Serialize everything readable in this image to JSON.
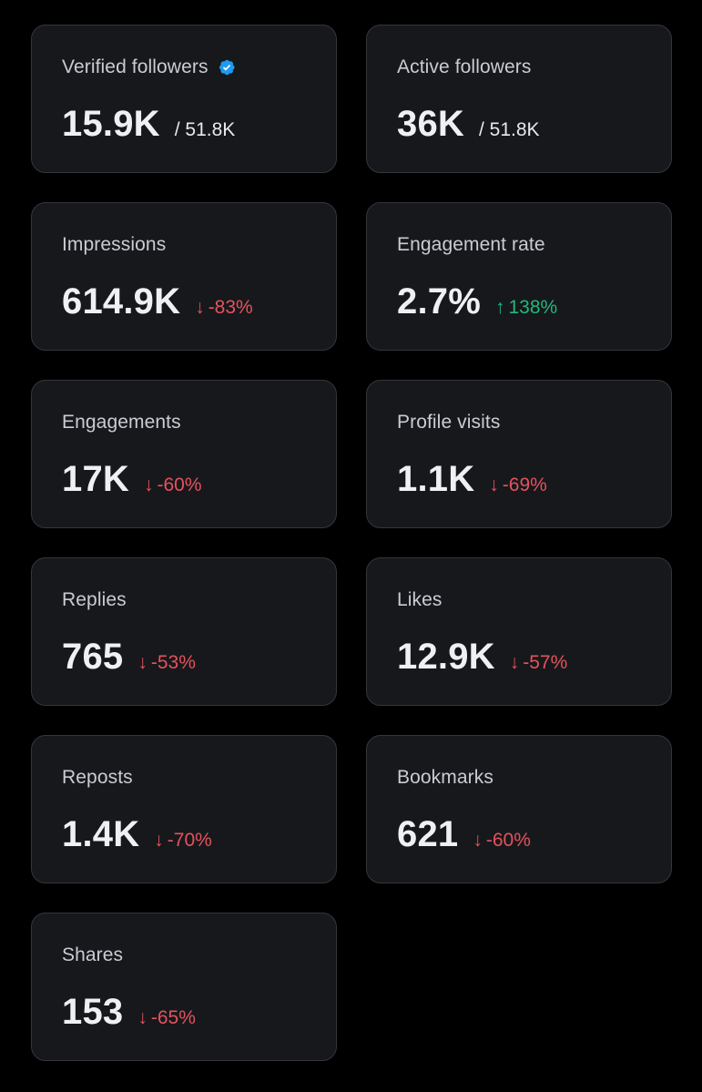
{
  "colors": {
    "background": "#000000",
    "card": "#17181c",
    "card_border": "#34363b",
    "positive": "#22b87a",
    "negative": "#e3535c",
    "verified": "#1d9bf0"
  },
  "cards": [
    {
      "label": "Verified followers",
      "value": "15.9K",
      "total": "/ 51.8K",
      "icon": "verified-badge-icon"
    },
    {
      "label": "Active followers",
      "value": "36K",
      "total": "/ 51.8K"
    },
    {
      "label": "Impressions",
      "value": "614.9K",
      "change": "-83%",
      "direction": "down",
      "arrow": "↓"
    },
    {
      "label": "Engagement rate",
      "value": "2.7%",
      "change": "138%",
      "direction": "up",
      "arrow": "↑"
    },
    {
      "label": "Engagements",
      "value": "17K",
      "change": "-60%",
      "direction": "down",
      "arrow": "↓"
    },
    {
      "label": "Profile visits",
      "value": "1.1K",
      "change": "-69%",
      "direction": "down",
      "arrow": "↓"
    },
    {
      "label": "Replies",
      "value": "765",
      "change": "-53%",
      "direction": "down",
      "arrow": "↓"
    },
    {
      "label": "Likes",
      "value": "12.9K",
      "change": "-57%",
      "direction": "down",
      "arrow": "↓"
    },
    {
      "label": "Reposts",
      "value": "1.4K",
      "change": "-70%",
      "direction": "down",
      "arrow": "↓"
    },
    {
      "label": "Bookmarks",
      "value": "621",
      "change": "-60%",
      "direction": "down",
      "arrow": "↓"
    },
    {
      "label": "Shares",
      "value": "153",
      "change": "-65%",
      "direction": "down",
      "arrow": "↓"
    }
  ]
}
